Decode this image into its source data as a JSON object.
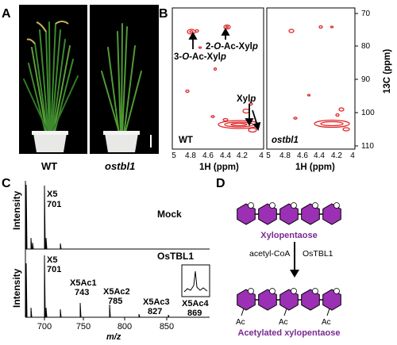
{
  "panelA": {
    "letter": "A",
    "wt_label": "WT",
    "mutant_label": "ostbl1"
  },
  "panelB": {
    "letter": "B",
    "wt_label": "WT",
    "mutant_label": "ostbl1",
    "xlabel": "1H (ppm)",
    "ylabel": "13C (ppm)",
    "x_ticks": [
      "5",
      "4.8",
      "4.6",
      "4.4",
      "4.2",
      "4.1",
      "4"
    ],
    "x_ticks_right": [
      "5",
      "4.8",
      "4.6",
      "4.4",
      "4.2",
      "4"
    ],
    "y_ticks": [
      "70",
      "80",
      "90",
      "100",
      "110"
    ],
    "ann_3oac_prefix": "3-",
    "ann_3oac_o": "O",
    "ann_3oac_mid": "-Ac-Xyl",
    "ann_3oac_p": "p",
    "ann_2oac_prefix": "2-",
    "ann_2oac_o": "O",
    "ann_2oac_mid": "-Ac-Xyl",
    "ann_2oac_p": "p",
    "ann_xyl": "Xyl",
    "ann_xyl_p": "p",
    "peak_color": "#e0262a"
  },
  "panelC": {
    "letter": "C",
    "ylabel": "Intensity",
    "xlabel": "m/z",
    "x_ticks": [
      "700",
      "750",
      "800",
      "850"
    ],
    "mock_label": "Mock",
    "tbl_label": "OsTBL1",
    "mock_peak": {
      "name": "X5",
      "mz": "701"
    },
    "tbl_peaks": [
      {
        "name": "X5",
        "mz": "701"
      },
      {
        "name": "X5Ac1",
        "mz": "743"
      },
      {
        "name": "X5Ac2",
        "mz": "785"
      },
      {
        "name": "X5Ac3",
        "mz": "827"
      },
      {
        "name": "X5Ac4",
        "mz": "869"
      }
    ]
  },
  "panelD": {
    "letter": "D",
    "top_label": "Xylopentaose",
    "reagent_left": "acetyl-CoA",
    "reagent_right": "OsTBL1",
    "ac_label": "Ac",
    "bottom_label": "Acetylated xylopentaose",
    "sugar_color": "#9b30b4"
  }
}
